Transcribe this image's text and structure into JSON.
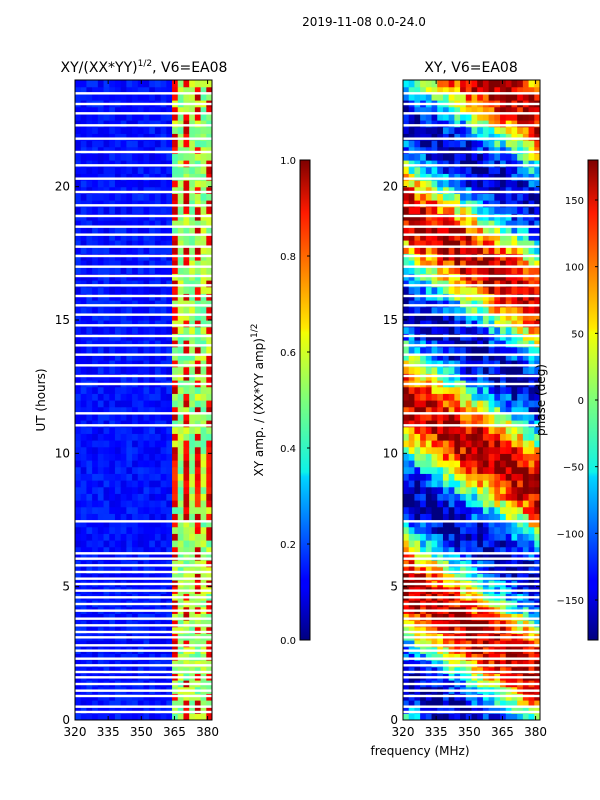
{
  "figure_title": "2019-11-08 0.0-24.0",
  "chart_data": [
    {
      "type": "heatmap",
      "title_main": "XY/(XX*YY)",
      "title_sup": "1/2",
      "title_tail": ", V6=EA08",
      "xlabel": "",
      "ylabel": "UT (hours)",
      "xlim": [
        320,
        382
      ],
      "ylim": [
        0,
        24
      ],
      "xticks": [
        "320",
        "335",
        "350",
        "365",
        "380"
      ],
      "xtick_values": [
        320,
        335,
        350,
        365,
        380
      ],
      "yticks": [
        "0",
        "5",
        "10",
        "15",
        "20"
      ],
      "ytick_values": [
        0,
        5,
        10,
        15,
        20
      ],
      "colorbar": {
        "label_main": "XY amp. / (XX*YY amp)",
        "label_sup": "1/2",
        "range": [
          0.0,
          1.0
        ],
        "ticks": [
          "0.0",
          "0.2",
          "0.4",
          "0.6",
          "0.8",
          "1.0"
        ],
        "tick_values": [
          0.0,
          0.2,
          0.4,
          0.6,
          0.8,
          1.0
        ],
        "colormap": "jet"
      },
      "description_values": {
        "background_level": 0.1,
        "rfi_band_mhz": [
          363,
          382
        ],
        "rfi_band_level": 0.45,
        "hot_channels_mhz": [
          365,
          370,
          375,
          380
        ],
        "hot_level": 0.85,
        "bright_hours": [
          7.8,
          10.0
        ]
      }
    },
    {
      "type": "heatmap",
      "title_main": "XY, V6=EA08",
      "xlabel": "frequency (MHz)",
      "ylabel": "",
      "xlim": [
        320,
        382
      ],
      "ylim": [
        0,
        24
      ],
      "xticks": [
        "320",
        "335",
        "350",
        "365",
        "380"
      ],
      "xtick_values": [
        320,
        335,
        350,
        365,
        380
      ],
      "yticks": [
        "0",
        "5",
        "10",
        "15",
        "20"
      ],
      "ytick_values": [
        0,
        5,
        10,
        15,
        20
      ],
      "colorbar": {
        "label_main": "phase (deg)",
        "range": [
          -180,
          180
        ],
        "ticks": [
          "−150",
          "−100",
          "−50",
          "0",
          "50",
          "100",
          "150"
        ],
        "tick_values": [
          -150,
          -100,
          -50,
          0,
          50,
          100,
          150
        ],
        "colormap": "jet"
      }
    }
  ],
  "flagged_rows_hours": [
    0.3,
    0.5,
    0.9,
    1.1,
    1.35,
    1.6,
    1.8,
    2.05,
    2.3,
    2.6,
    2.8,
    3.1,
    3.3,
    3.55,
    3.8,
    4.1,
    4.35,
    4.6,
    4.85,
    5.1,
    5.3,
    5.55,
    5.8,
    6.05,
    6.25,
    7.45,
    11.05,
    11.5,
    12.6,
    12.9,
    13.3,
    13.7,
    14.05,
    14.4,
    14.8,
    15.2,
    15.55,
    15.9,
    16.3,
    16.65,
    17.0,
    17.4,
    17.75,
    18.2,
    18.5,
    18.9,
    19.3,
    19.8,
    20.3,
    20.8,
    21.3,
    21.8,
    22.3,
    22.75,
    23.1,
    23.5
  ]
}
